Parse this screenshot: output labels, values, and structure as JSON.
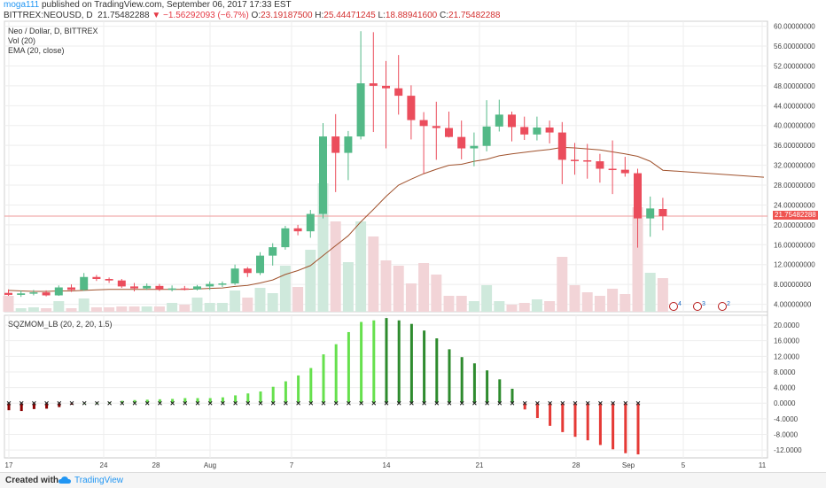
{
  "header": {
    "user": "moga111",
    "published": "published on TradingView.com, September 06, 2017 17:33 EST",
    "symbol": "BITTREX:NEOUSD, D",
    "last": "21.75482288",
    "arrow": "▼",
    "change": "−1.56292093 (−6.7%)",
    "open_label": "O:",
    "open": "23.19187500",
    "high_label": "H:",
    "high": "25.44471245",
    "low_label": "L:",
    "low": "18.88941600",
    "close_label": "C:",
    "close": "21.75482288"
  },
  "legend": {
    "line1": "Neo / Dollar, D, BITTREX",
    "line2": "Vol (20)",
    "line3": "EMA (20, close)",
    "osc": "SQZMOM_LB (20, 2, 20, 1.5)"
  },
  "price_tag": "21.75482288",
  "footer": {
    "created": "Created with",
    "brand": "TradingView"
  },
  "colors": {
    "up": "#53b987",
    "down": "#eb4d5c",
    "ema": "#a0522d",
    "vol_up": "#cfe9dc",
    "vol_down": "#f2d4d7",
    "mom_lime": "#66e04d",
    "mom_green": "#2e8b2e",
    "mom_red": "#e53935",
    "mom_maroon": "#8b0000",
    "grid": "#eeeeee"
  },
  "chart_data": [
    {
      "type": "candlestick",
      "title": "Neo / Dollar, D, BITTREX",
      "y_ticks": [
        "60.00000000",
        "56.00000000",
        "52.00000000",
        "48.00000000",
        "44.00000000",
        "40.00000000",
        "36.00000000",
        "32.00000000",
        "28.00000000",
        "24.00000000",
        "20.00000000",
        "16.00000000",
        "12.00000000",
        "8.00000000",
        "4.00000000"
      ],
      "ylim": [
        2.5,
        61
      ],
      "x_tick_labels": [
        "17",
        "24",
        "28",
        "Aug",
        "7",
        "14",
        "21",
        "28",
        "Sep",
        "5",
        "11"
      ],
      "candles": [
        {
          "o": 6.3,
          "h": 7.0,
          "l": 5.7,
          "c": 5.9
        },
        {
          "o": 5.9,
          "h": 6.8,
          "l": 5.5,
          "c": 6.2
        },
        {
          "o": 6.2,
          "h": 6.9,
          "l": 5.8,
          "c": 6.4
        },
        {
          "o": 6.4,
          "h": 6.8,
          "l": 5.6,
          "c": 5.8
        },
        {
          "o": 5.8,
          "h": 7.8,
          "l": 5.7,
          "c": 7.4
        },
        {
          "o": 7.4,
          "h": 8.0,
          "l": 6.5,
          "c": 6.9
        },
        {
          "o": 6.9,
          "h": 10.3,
          "l": 6.7,
          "c": 9.5
        },
        {
          "o": 9.5,
          "h": 9.9,
          "l": 8.7,
          "c": 9.1
        },
        {
          "o": 9.1,
          "h": 9.4,
          "l": 8.3,
          "c": 8.8
        },
        {
          "o": 8.8,
          "h": 9.1,
          "l": 7.3,
          "c": 7.6
        },
        {
          "o": 7.6,
          "h": 8.3,
          "l": 6.6,
          "c": 7.2
        },
        {
          "o": 7.2,
          "h": 8.2,
          "l": 6.9,
          "c": 7.7
        },
        {
          "o": 7.7,
          "h": 8.1,
          "l": 6.7,
          "c": 7.0
        },
        {
          "o": 7.0,
          "h": 7.8,
          "l": 6.6,
          "c": 7.2
        },
        {
          "o": 7.2,
          "h": 7.7,
          "l": 6.8,
          "c": 7.0
        },
        {
          "o": 7.0,
          "h": 7.9,
          "l": 6.8,
          "c": 7.6
        },
        {
          "o": 7.6,
          "h": 8.6,
          "l": 6.9,
          "c": 8.1
        },
        {
          "o": 8.1,
          "h": 8.6,
          "l": 7.5,
          "c": 8.2
        },
        {
          "o": 8.2,
          "h": 12.0,
          "l": 7.9,
          "c": 11.2
        },
        {
          "o": 11.2,
          "h": 11.5,
          "l": 9.5,
          "c": 10.3
        },
        {
          "o": 10.3,
          "h": 14.5,
          "l": 9.9,
          "c": 13.8
        },
        {
          "o": 13.8,
          "h": 16.3,
          "l": 11.8,
          "c": 15.5
        },
        {
          "o": 15.5,
          "h": 19.8,
          "l": 15.0,
          "c": 19.3
        },
        {
          "o": 19.3,
          "h": 20.0,
          "l": 17.9,
          "c": 18.7
        },
        {
          "o": 18.7,
          "h": 23.0,
          "l": 17.4,
          "c": 22.2
        },
        {
          "o": 22.2,
          "h": 40.5,
          "l": 21.3,
          "c": 37.8
        },
        {
          "o": 37.8,
          "h": 42.3,
          "l": 26.6,
          "c": 34.5
        },
        {
          "o": 34.5,
          "h": 38.9,
          "l": 29.0,
          "c": 37.8
        },
        {
          "o": 37.8,
          "h": 59.0,
          "l": 37.2,
          "c": 48.5
        },
        {
          "o": 48.5,
          "h": 58.8,
          "l": 38.7,
          "c": 48.0
        },
        {
          "o": 48.0,
          "h": 53.0,
          "l": 35.4,
          "c": 47.5
        },
        {
          "o": 47.5,
          "h": 54.2,
          "l": 42.2,
          "c": 46.0
        },
        {
          "o": 46.0,
          "h": 48.1,
          "l": 37.2,
          "c": 41.1
        },
        {
          "o": 41.1,
          "h": 42.7,
          "l": 30.3,
          "c": 39.9
        },
        {
          "o": 39.9,
          "h": 44.8,
          "l": 33.1,
          "c": 39.5
        },
        {
          "o": 39.5,
          "h": 42.8,
          "l": 37.6,
          "c": 37.7
        },
        {
          "o": 37.7,
          "h": 41.0,
          "l": 33.2,
          "c": 35.4
        },
        {
          "o": 35.4,
          "h": 38.6,
          "l": 31.8,
          "c": 35.9
        },
        {
          "o": 35.9,
          "h": 45.1,
          "l": 34.8,
          "c": 39.8
        },
        {
          "o": 39.8,
          "h": 45.2,
          "l": 38.8,
          "c": 42.2
        },
        {
          "o": 42.2,
          "h": 42.8,
          "l": 36.8,
          "c": 39.7
        },
        {
          "o": 39.7,
          "h": 41.8,
          "l": 37.1,
          "c": 38.2
        },
        {
          "o": 38.2,
          "h": 41.8,
          "l": 37.0,
          "c": 39.6
        },
        {
          "o": 39.6,
          "h": 41.0,
          "l": 36.4,
          "c": 38.6
        },
        {
          "o": 38.6,
          "h": 40.7,
          "l": 28.2,
          "c": 33.1
        },
        {
          "o": 33.1,
          "h": 36.5,
          "l": 30.1,
          "c": 33.0
        },
        {
          "o": 33.0,
          "h": 36.3,
          "l": 29.3,
          "c": 32.8
        },
        {
          "o": 32.8,
          "h": 34.3,
          "l": 28.5,
          "c": 31.3
        },
        {
          "o": 31.3,
          "h": 37.0,
          "l": 26.2,
          "c": 31.1
        },
        {
          "o": 31.1,
          "h": 33.7,
          "l": 29.7,
          "c": 30.4
        },
        {
          "o": 30.4,
          "h": 31.3,
          "l": 15.4,
          "c": 21.3
        },
        {
          "o": 21.3,
          "h": 25.7,
          "l": 17.6,
          "c": 23.3
        },
        {
          "o": 23.19,
          "h": 25.44,
          "l": 18.89,
          "c": 21.75
        }
      ],
      "volume": [
        {
          "v": 18,
          "up": false
        },
        {
          "v": 4,
          "up": true
        },
        {
          "v": 5,
          "up": true
        },
        {
          "v": 4,
          "up": false
        },
        {
          "v": 12,
          "up": true
        },
        {
          "v": 4,
          "up": false
        },
        {
          "v": 15,
          "up": true
        },
        {
          "v": 5,
          "up": false
        },
        {
          "v": 5,
          "up": false
        },
        {
          "v": 6,
          "up": false
        },
        {
          "v": 6,
          "up": false
        },
        {
          "v": 6,
          "up": true
        },
        {
          "v": 6,
          "up": false
        },
        {
          "v": 10,
          "up": true
        },
        {
          "v": 8,
          "up": false
        },
        {
          "v": 16,
          "up": true
        },
        {
          "v": 10,
          "up": true
        },
        {
          "v": 10,
          "up": true
        },
        {
          "v": 24,
          "up": true
        },
        {
          "v": 16,
          "up": false
        },
        {
          "v": 27,
          "up": true
        },
        {
          "v": 21,
          "up": true
        },
        {
          "v": 52,
          "up": true
        },
        {
          "v": 28,
          "up": false
        },
        {
          "v": 70,
          "up": true
        },
        {
          "v": 145,
          "up": true
        },
        {
          "v": 102,
          "up": false
        },
        {
          "v": 56,
          "up": true
        },
        {
          "v": 102,
          "up": true
        },
        {
          "v": 85,
          "up": false
        },
        {
          "v": 58,
          "up": false
        },
        {
          "v": 52,
          "up": false
        },
        {
          "v": 32,
          "up": false
        },
        {
          "v": 55,
          "up": false
        },
        {
          "v": 42,
          "up": false
        },
        {
          "v": 18,
          "up": false
        },
        {
          "v": 18,
          "up": false
        },
        {
          "v": 12,
          "up": true
        },
        {
          "v": 30,
          "up": true
        },
        {
          "v": 12,
          "up": true
        },
        {
          "v": 8,
          "up": false
        },
        {
          "v": 10,
          "up": false
        },
        {
          "v": 14,
          "up": true
        },
        {
          "v": 12,
          "up": false
        },
        {
          "v": 62,
          "up": false
        },
        {
          "v": 30,
          "up": false
        },
        {
          "v": 22,
          "up": false
        },
        {
          "v": 18,
          "up": false
        },
        {
          "v": 26,
          "up": false
        },
        {
          "v": 20,
          "up": false
        },
        {
          "v": 118,
          "up": false
        },
        {
          "v": 44,
          "up": true
        },
        {
          "v": 38,
          "up": false
        }
      ],
      "vol_max": 160,
      "ema": [
        6.8,
        6.7,
        6.6,
        6.6,
        6.7,
        6.7,
        6.8,
        6.9,
        7.0,
        7.0,
        7.0,
        7.0,
        7.0,
        7.0,
        7.0,
        7.1,
        7.2,
        7.3,
        7.6,
        7.8,
        8.3,
        8.9,
        10.0,
        10.8,
        11.8,
        13.8,
        15.8,
        17.8,
        20.6,
        23.1,
        25.7,
        28.0,
        29.2,
        30.3,
        31.2,
        32.0,
        32.2,
        32.8,
        33.2,
        33.9,
        34.3,
        34.6,
        34.9,
        35.2,
        35.6,
        35.5,
        35.3,
        35.1,
        34.7,
        34.3,
        33.8,
        32.8,
        31.0
      ]
    },
    {
      "type": "bar",
      "title": "SQZMOM_LB (20, 2, 20, 1.5)",
      "y_ticks": [
        "20.0000",
        "16.0000",
        "12.0000",
        "8.0000",
        "4.0000",
        "0.0000",
        "-4.0000",
        "-8.0000",
        "-12.0000"
      ],
      "ylim": [
        -14,
        22.5
      ],
      "values": [
        -1.8,
        -2.0,
        -1.5,
        -1.4,
        -1.0,
        -0.4,
        -0.1,
        0.1,
        0.3,
        0.6,
        0.8,
        0.9,
        1.0,
        1.1,
        1.3,
        1.3,
        1.3,
        1.5,
        2.0,
        2.5,
        3.0,
        4.2,
        5.6,
        7.1,
        9.0,
        12.5,
        15.1,
        18.2,
        20.8,
        21.2,
        21.8,
        21.2,
        20.3,
        18.6,
        16.6,
        13.8,
        11.8,
        10.2,
        8.4,
        6.1,
        3.7,
        -1.6,
        -3.8,
        -5.8,
        -7.4,
        -8.6,
        -9.5,
        -10.7,
        -11.8,
        -12.8,
        -13.1
      ],
      "colors": [
        "maroon",
        "maroon",
        "maroon",
        "maroon",
        "maroon",
        "maroon",
        "lime",
        "lime",
        "lime",
        "lime",
        "lime",
        "lime",
        "lime",
        "lime",
        "lime",
        "lime",
        "lime",
        "lime",
        "lime",
        "lime",
        "lime",
        "lime",
        "lime",
        "lime",
        "lime",
        "lime",
        "lime",
        "lime",
        "lime",
        "lime",
        "green",
        "green",
        "green",
        "green",
        "green",
        "green",
        "green",
        "green",
        "green",
        "green",
        "green",
        "red",
        "red",
        "red",
        "red",
        "red",
        "red",
        "red",
        "red",
        "red",
        "red"
      ]
    }
  ]
}
